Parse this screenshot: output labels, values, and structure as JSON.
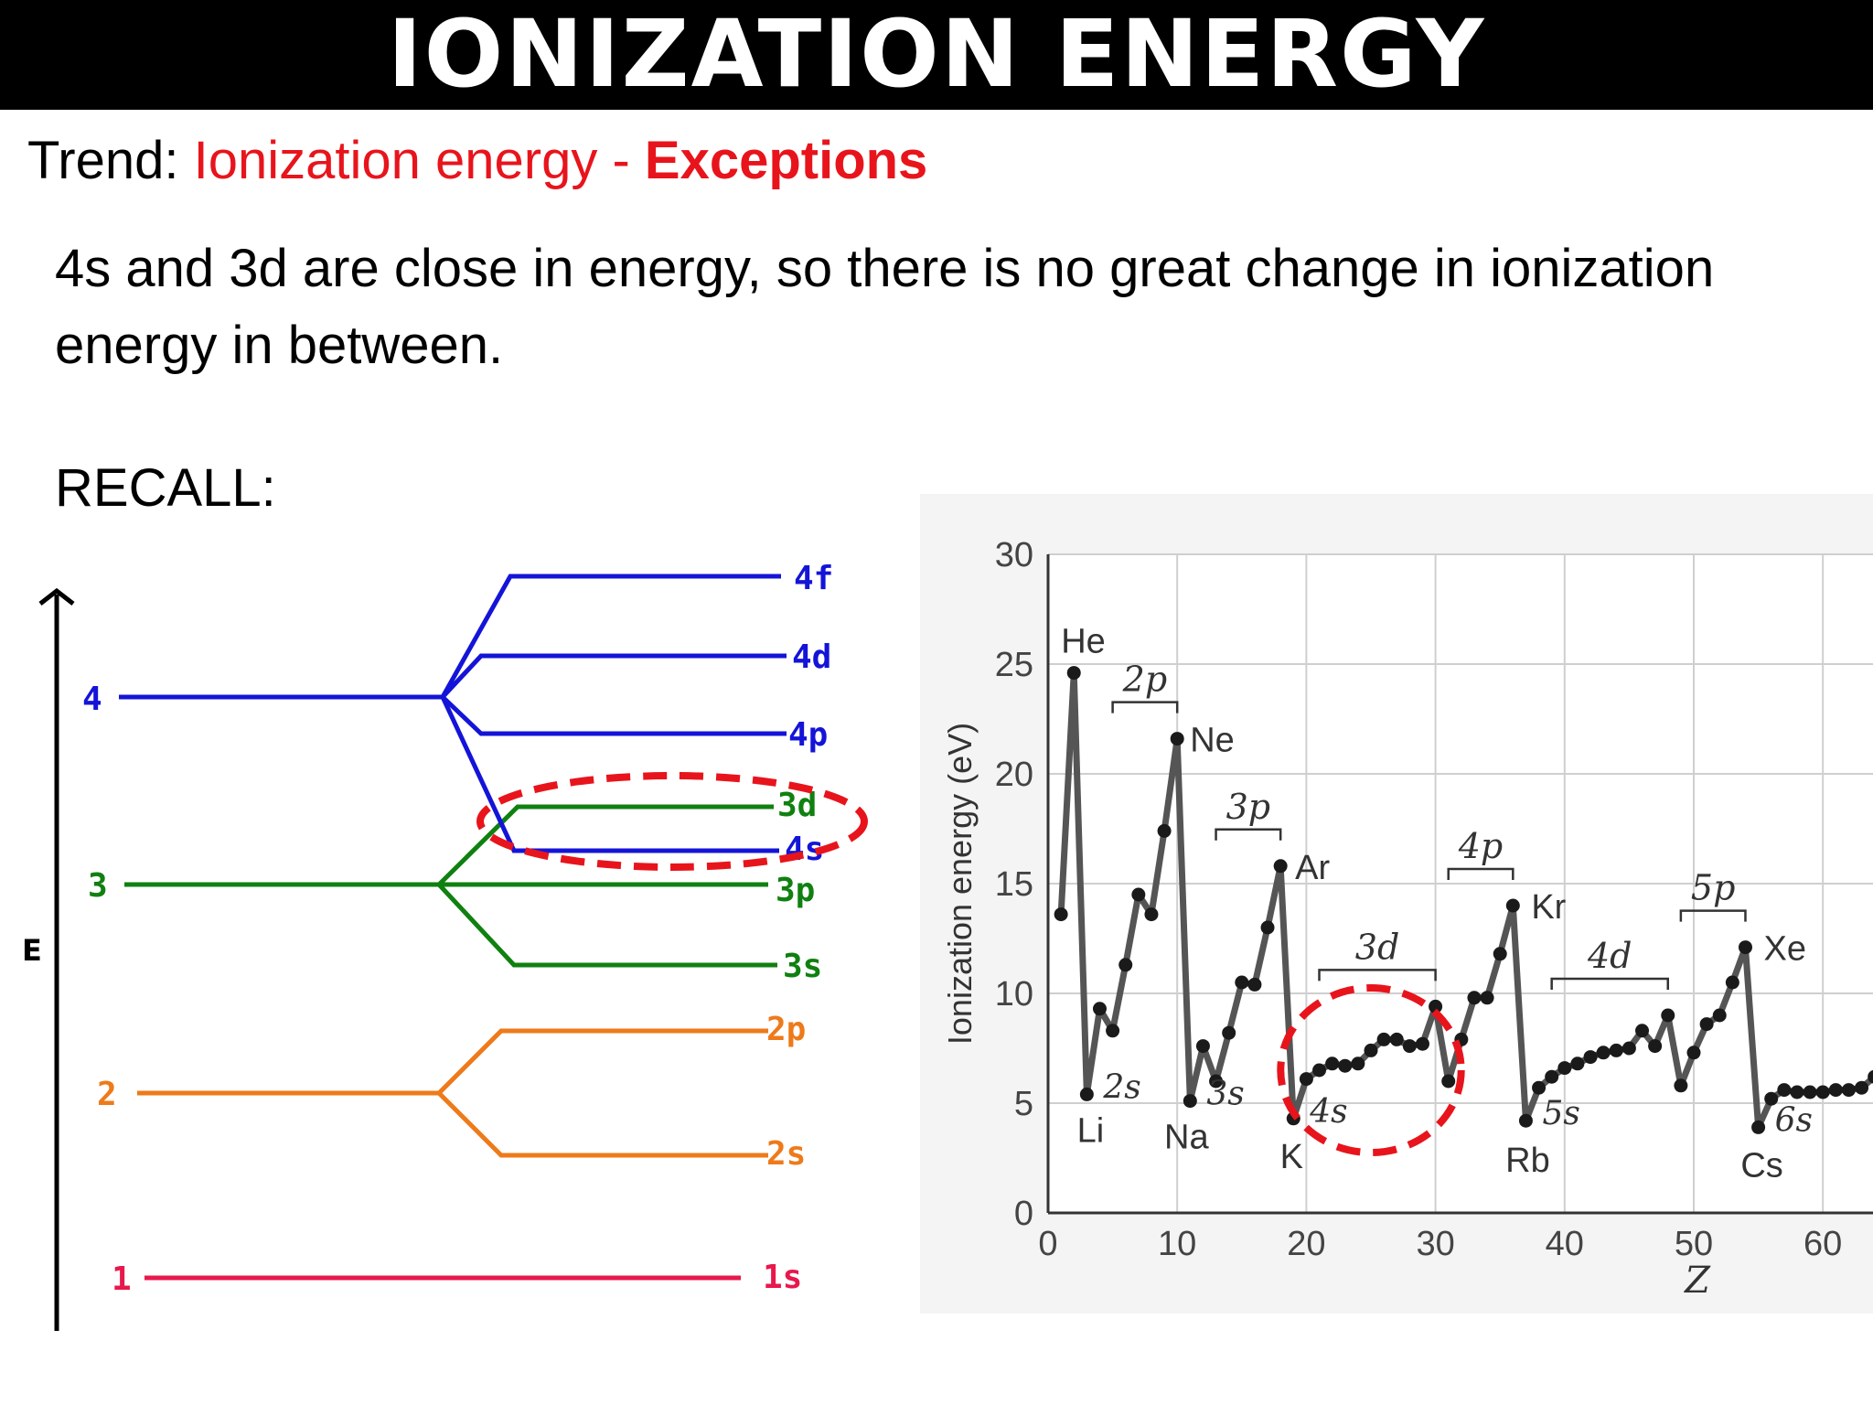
{
  "title": "IONIZATION ENERGY",
  "trend": {
    "prefix": "Trend: ",
    "topic": "Ionization energy - ",
    "emphasis": "Exceptions"
  },
  "body_text": "4s and 3d are close in energy, so there is no great change in ionization energy in between.",
  "recall": "RECALL:",
  "energy_diagram": {
    "axis_label": "E",
    "shells": [
      {
        "n": "1",
        "color": "#e8184c",
        "orbitals": [
          "1s"
        ]
      },
      {
        "n": "2",
        "color": "#ee7a1a",
        "orbitals": [
          "2p",
          "2s"
        ]
      },
      {
        "n": "3",
        "color": "#108010",
        "orbitals": [
          "3d",
          "3p",
          "3s"
        ]
      },
      {
        "n": "4",
        "color": "#1414d8",
        "orbitals": [
          "4f",
          "4d",
          "4p",
          "4s"
        ]
      }
    ],
    "highlight_color": "#e8141c"
  },
  "chart_data": {
    "type": "line",
    "title": "",
    "xlabel": "Z",
    "ylabel": "Ionization energy (eV)",
    "xlim": [
      0,
      64
    ],
    "ylim": [
      0,
      30
    ],
    "xticks": [
      0,
      10,
      20,
      30,
      40,
      50,
      60
    ],
    "yticks": [
      0,
      5,
      10,
      15,
      20,
      25,
      30
    ],
    "grid": true,
    "line_color": "#555555",
    "series": [
      {
        "x": [
          1,
          2,
          3,
          4,
          5,
          6,
          7,
          8,
          9,
          10,
          11,
          12,
          13,
          14,
          15,
          16,
          17,
          18,
          19,
          20,
          21,
          22,
          23,
          24,
          25,
          26,
          27,
          28,
          29,
          30,
          31,
          32,
          33,
          34,
          35,
          36,
          37,
          38,
          39,
          40,
          41,
          42,
          43,
          44,
          45,
          46,
          47,
          48,
          49,
          50,
          51,
          52,
          53,
          54,
          55,
          56,
          57,
          58,
          59,
          60,
          61,
          62,
          63,
          64
        ],
        "y": [
          13.6,
          24.6,
          5.4,
          9.3,
          8.3,
          11.3,
          14.5,
          13.6,
          17.4,
          21.6,
          5.1,
          7.6,
          6.0,
          8.2,
          10.5,
          10.4,
          13.0,
          15.8,
          4.3,
          6.1,
          6.5,
          6.8,
          6.7,
          6.8,
          7.4,
          7.9,
          7.9,
          7.6,
          7.7,
          9.4,
          6.0,
          7.9,
          9.8,
          9.8,
          11.8,
          14.0,
          4.2,
          5.7,
          6.2,
          6.6,
          6.8,
          7.1,
          7.3,
          7.4,
          7.5,
          8.3,
          7.6,
          9.0,
          5.8,
          7.3,
          8.6,
          9.0,
          10.5,
          12.1,
          3.9,
          5.2,
          5.6,
          5.5,
          5.5,
          5.5,
          5.6,
          5.6,
          5.7,
          6.2
        ]
      }
    ],
    "annotations": [
      {
        "label": "He",
        "x": 2
      },
      {
        "label": "Li",
        "x": 3
      },
      {
        "label": "Ne",
        "x": 10
      },
      {
        "label": "Na",
        "x": 11
      },
      {
        "label": "Ar",
        "x": 18
      },
      {
        "label": "K",
        "x": 19
      },
      {
        "label": "Kr",
        "x": 36
      },
      {
        "label": "Rb",
        "x": 37
      },
      {
        "label": "Xe",
        "x": 54
      },
      {
        "label": "Cs",
        "x": 55
      }
    ],
    "subshell_labels": [
      {
        "label": "2p",
        "from": 5,
        "to": 10,
        "bracket": true
      },
      {
        "label": "3p",
        "from": 13,
        "to": 18,
        "bracket": true
      },
      {
        "label": "3d",
        "from": 21,
        "to": 30,
        "bracket": true
      },
      {
        "label": "4p",
        "from": 31,
        "to": 36,
        "bracket": true
      },
      {
        "label": "4d",
        "from": 39,
        "to": 48,
        "bracket": true
      },
      {
        "label": "5p",
        "from": 49,
        "to": 54,
        "bracket": true
      },
      {
        "label": "2s",
        "x": 3
      },
      {
        "label": "3s",
        "x": 11
      },
      {
        "label": "4s",
        "x": 19
      },
      {
        "label": "5s",
        "x": 37
      },
      {
        "label": "6s",
        "x": 55
      }
    ],
    "highlight": {
      "from": 19,
      "to": 31,
      "color": "#e8141c",
      "style": "dashed-ellipse"
    }
  }
}
